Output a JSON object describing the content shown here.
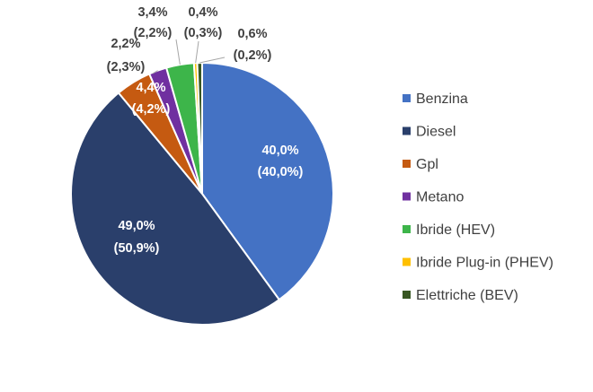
{
  "chart_data": {
    "type": "pie",
    "categories": [
      "Benzina",
      "Diesel",
      "Gpl",
      "Metano",
      "Ibride (HEV)",
      "Ibride Plug-in  (PHEV)",
      "Elettriche (BEV)"
    ],
    "values": [
      40.0,
      49.0,
      4.4,
      2.2,
      3.4,
      0.4,
      0.6
    ],
    "secondary_values": [
      40.0,
      50.9,
      4.2,
      2.3,
      2.2,
      0.3,
      0.2
    ],
    "value_labels": [
      "40,0%",
      "49,0%",
      "4,4%",
      "2,2%",
      "3,4%",
      "0,4%",
      "0,6%"
    ],
    "secondary_labels": [
      "(40,0%)",
      "(50,9%)",
      "(4,2%)",
      "(2,3%)",
      "(2,2%)",
      "(0,3%)",
      "(0,2%)"
    ],
    "colors": [
      "#4472C4",
      "#2A3F6B",
      "#C55A11",
      "#7030A0",
      "#3DB54A",
      "#FFC000",
      "#385723"
    ],
    "legend": {
      "placement": "right",
      "entries": [
        "Benzina",
        "Diesel",
        "Gpl",
        "Metano",
        "Ibride (HEV)",
        "Ibride Plug-in  (PHEV)",
        "Elettriche (BEV)"
      ]
    },
    "title": ""
  }
}
